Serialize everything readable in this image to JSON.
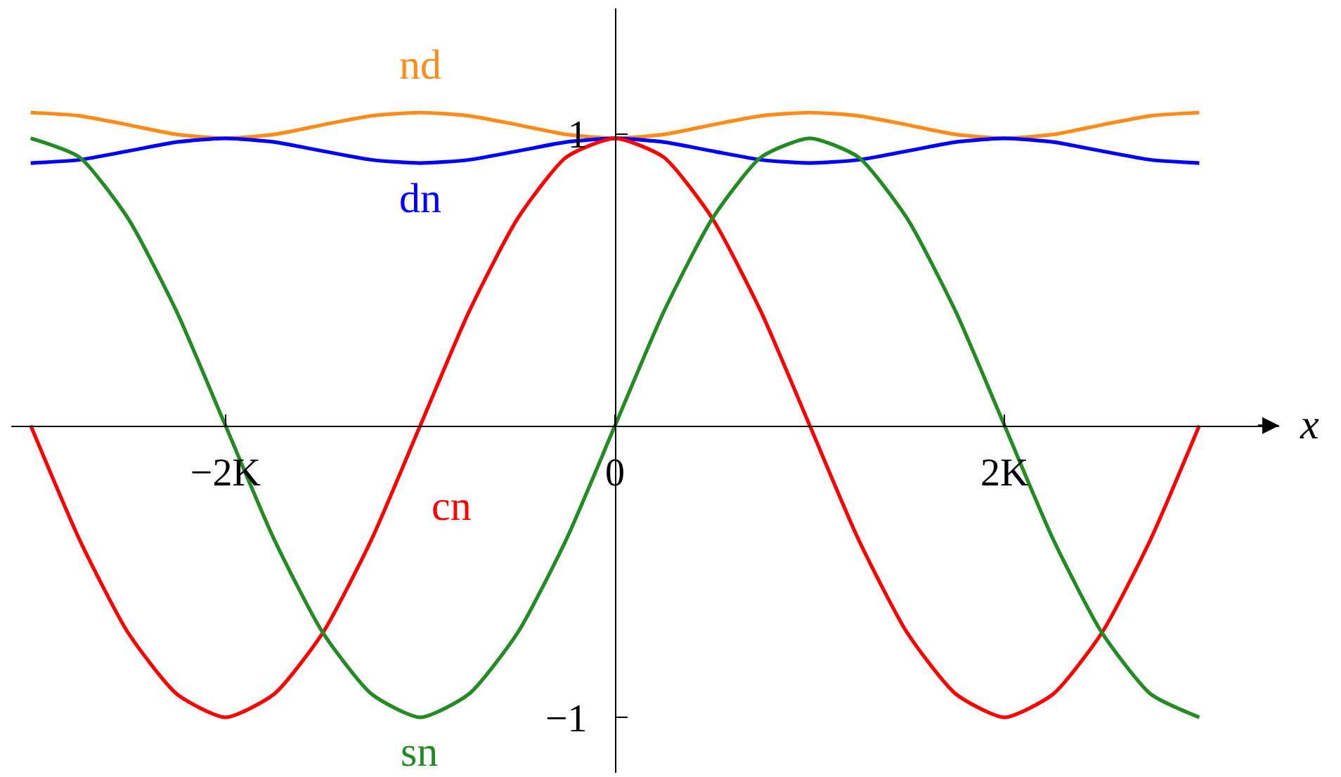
{
  "chart_data": {
    "type": "line",
    "xlabel": "x",
    "x": [
      -3,
      -2.75,
      -2.5,
      -2.25,
      -2,
      -1.75,
      -1.5,
      -1.25,
      -1,
      -0.75,
      -0.5,
      -0.25,
      0,
      0.25,
      0.5,
      0.75,
      1,
      1.25,
      1.5,
      1.75,
      2,
      2.25,
      2.5,
      2.75,
      3
    ],
    "series": [
      {
        "name": "nd",
        "color": "#ff8c1a",
        "values": [
          1.073,
          1.062,
          1.031,
          0.998,
          0.985,
          0.998,
          1.031,
          1.062,
          1.073,
          1.062,
          1.031,
          0.998,
          0.985,
          0.998,
          1.031,
          1.062,
          1.073,
          1.062,
          1.031,
          0.998,
          0.985,
          0.998,
          1.031,
          1.062,
          1.073
        ]
      },
      {
        "name": "dn",
        "color": "#0000ff",
        "values": [
          0.9,
          0.911,
          0.941,
          0.972,
          0.985,
          0.972,
          0.941,
          0.911,
          0.9,
          0.911,
          0.941,
          0.972,
          0.985,
          0.972,
          0.941,
          0.911,
          0.9,
          0.911,
          0.941,
          0.972,
          0.985,
          0.972,
          0.941,
          0.911,
          0.9
        ]
      },
      {
        "name": "cn",
        "color": "#ff0000",
        "values": [
          0,
          -0.39,
          -0.71,
          -0.92,
          -1,
          -0.92,
          -0.71,
          -0.39,
          0,
          0.39,
          0.71,
          0.92,
          0.985,
          0.92,
          0.71,
          0.39,
          0,
          -0.39,
          -0.71,
          -0.92,
          -1,
          -0.92,
          -0.71,
          -0.39,
          0
        ]
      },
      {
        "name": "sn",
        "color": "#228b22",
        "values": [
          0.985,
          0.92,
          0.71,
          0.39,
          0,
          -0.39,
          -0.71,
          -0.92,
          -1,
          -0.92,
          -0.71,
          -0.39,
          0,
          0.39,
          0.71,
          0.92,
          0.985,
          0.92,
          0.71,
          0.39,
          0,
          -0.39,
          -0.71,
          -0.92,
          -1
        ]
      }
    ],
    "xlim": [
      -3.1,
      3.41
    ],
    "ylim": [
      -1.19,
      1.43
    ],
    "xticks": [
      {
        "value": -2,
        "label": "−2K"
      },
      {
        "value": 0,
        "label": "0"
      },
      {
        "value": 2,
        "label": "2K"
      }
    ],
    "yticks": [
      {
        "value": -1,
        "label": "−1"
      },
      {
        "value": 1,
        "label": "1"
      }
    ],
    "grid": false,
    "legend": false,
    "marker": "none",
    "line_style": "solid"
  }
}
